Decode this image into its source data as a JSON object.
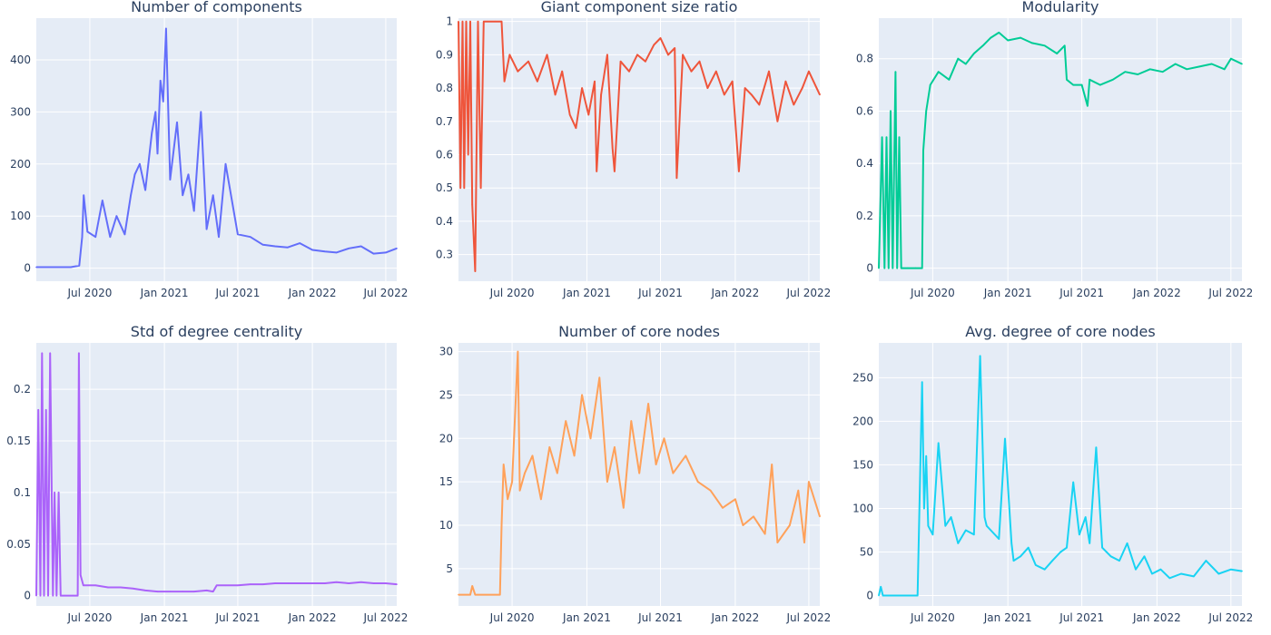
{
  "chart_data": [
    {
      "type": "line",
      "title": "Number of components",
      "color": "#636efa",
      "x_range": [
        "2020-02-20",
        "2022-07-28"
      ],
      "x_ticks": [
        "2020-07-01",
        "2021-01-01",
        "2021-07-01",
        "2022-01-01",
        "2022-07-01"
      ],
      "x_tick_labels": [
        "Jul 2020",
        "Jan 2021",
        "Jul 2021",
        "Jan 2022",
        "Jul 2022"
      ],
      "y_range": [
        -25,
        480
      ],
      "y_ticks": [
        0,
        100,
        200,
        300,
        400
      ],
      "y_tick_labels": [
        "0",
        "100",
        "200",
        "300",
        "400"
      ],
      "series": [
        {
          "x": [
            "2020-02-20",
            "2020-05-15",
            "2020-06-05",
            "2020-06-12",
            "2020-06-16",
            "2020-06-25",
            "2020-07-15",
            "2020-08-01",
            "2020-08-20",
            "2020-09-05",
            "2020-09-25",
            "2020-10-10",
            "2020-10-20",
            "2020-11-01",
            "2020-11-15",
            "2020-12-01",
            "2020-12-10",
            "2020-12-15",
            "2020-12-22",
            "2020-12-29",
            "2021-01-05",
            "2021-01-15",
            "2021-02-01",
            "2021-02-15",
            "2021-03-01",
            "2021-03-15",
            "2021-04-01",
            "2021-04-15",
            "2021-05-01",
            "2021-05-15",
            "2021-06-01",
            "2021-07-01",
            "2021-08-01",
            "2021-09-01",
            "2021-10-01",
            "2021-11-01",
            "2021-12-01",
            "2022-01-01",
            "2022-02-01",
            "2022-03-01",
            "2022-04-01",
            "2022-05-01",
            "2022-06-01",
            "2022-07-01",
            "2022-07-28"
          ],
          "y": [
            2,
            2,
            5,
            60,
            140,
            70,
            60,
            130,
            60,
            100,
            65,
            140,
            180,
            200,
            150,
            260,
            300,
            220,
            360,
            320,
            460,
            170,
            280,
            140,
            180,
            110,
            300,
            75,
            140,
            60,
            200,
            65,
            60,
            45,
            42,
            40,
            48,
            35,
            32,
            30,
            38,
            42,
            28,
            30,
            38
          ]
        }
      ]
    },
    {
      "type": "line",
      "title": "Giant component size ratio",
      "color": "#ef553b",
      "x_range": [
        "2020-02-20",
        "2022-07-28"
      ],
      "x_ticks": [
        "2020-07-01",
        "2021-01-01",
        "2021-07-01",
        "2022-01-01",
        "2022-07-01"
      ],
      "x_tick_labels": [
        "Jul 2020",
        "Jan 2021",
        "Jul 2021",
        "Jan 2022",
        "Jul 2022"
      ],
      "y_range": [
        0.22,
        1.01
      ],
      "y_ticks": [
        0.3,
        0.4,
        0.5,
        0.6,
        0.7,
        0.8,
        0.9,
        1
      ],
      "y_tick_labels": [
        "0.3",
        "0.4",
        "0.5",
        "0.6",
        "0.7",
        "0.8",
        "0.9",
        "1"
      ],
      "series": [
        {
          "x": [
            "2020-02-20",
            "2020-02-25",
            "2020-03-01",
            "2020-03-05",
            "2020-03-10",
            "2020-03-15",
            "2020-03-20",
            "2020-03-25",
            "2020-04-01",
            "2020-04-08",
            "2020-04-15",
            "2020-04-22",
            "2020-05-01",
            "2020-05-20",
            "2020-06-05",
            "2020-06-12",
            "2020-06-25",
            "2020-07-15",
            "2020-08-10",
            "2020-09-01",
            "2020-09-25",
            "2020-10-15",
            "2020-11-01",
            "2020-11-20",
            "2020-12-05",
            "2020-12-20",
            "2021-01-05",
            "2021-01-20",
            "2021-01-25",
            "2021-02-05",
            "2021-02-20",
            "2021-03-05",
            "2021-03-10",
            "2021-03-25",
            "2021-04-15",
            "2021-05-05",
            "2021-05-25",
            "2021-06-15",
            "2021-07-01",
            "2021-07-20",
            "2021-08-05",
            "2021-08-10",
            "2021-08-25",
            "2021-09-15",
            "2021-10-05",
            "2021-10-25",
            "2021-11-15",
            "2021-12-05",
            "2021-12-25",
            "2022-01-10",
            "2022-01-25",
            "2022-02-10",
            "2022-03-01",
            "2022-03-25",
            "2022-04-15",
            "2022-05-05",
            "2022-05-25",
            "2022-06-15",
            "2022-07-01",
            "2022-07-28"
          ],
          "y": [
            1,
            0.5,
            1,
            0.5,
            1,
            0.6,
            1,
            0.45,
            0.25,
            1,
            0.5,
            1,
            1,
            1,
            1,
            0.82,
            0.9,
            0.85,
            0.88,
            0.82,
            0.9,
            0.78,
            0.85,
            0.72,
            0.68,
            0.8,
            0.72,
            0.82,
            0.55,
            0.78,
            0.9,
            0.62,
            0.55,
            0.88,
            0.85,
            0.9,
            0.88,
            0.93,
            0.95,
            0.9,
            0.92,
            0.53,
            0.9,
            0.85,
            0.88,
            0.8,
            0.85,
            0.78,
            0.82,
            0.55,
            0.8,
            0.78,
            0.75,
            0.85,
            0.7,
            0.82,
            0.75,
            0.8,
            0.85,
            0.78
          ]
        }
      ]
    },
    {
      "type": "line",
      "title": "Modularity",
      "color": "#00cc96",
      "x_range": [
        "2020-02-20",
        "2022-07-28"
      ],
      "x_ticks": [
        "2020-07-01",
        "2021-01-01",
        "2021-07-01",
        "2022-01-01",
        "2022-07-01"
      ],
      "x_tick_labels": [
        "Jul 2020",
        "Jan 2021",
        "Jul 2021",
        "Jan 2022",
        "Jul 2022"
      ],
      "y_range": [
        -0.05,
        0.955
      ],
      "y_ticks": [
        0,
        0.2,
        0.4,
        0.6,
        0.8
      ],
      "y_tick_labels": [
        "0",
        "0.2",
        "0.4",
        "0.6",
        "0.8"
      ],
      "series": [
        {
          "x": [
            "2020-02-20",
            "2020-02-28",
            "2020-03-05",
            "2020-03-10",
            "2020-03-15",
            "2020-03-20",
            "2020-03-25",
            "2020-04-01",
            "2020-04-05",
            "2020-04-10",
            "2020-04-15",
            "2020-04-20",
            "2020-05-01",
            "2020-05-20",
            "2020-06-05",
            "2020-06-08",
            "2020-06-15",
            "2020-06-25",
            "2020-07-15",
            "2020-08-10",
            "2020-09-01",
            "2020-09-20",
            "2020-10-10",
            "2020-11-01",
            "2020-11-20",
            "2020-12-10",
            "2021-01-01",
            "2021-02-01",
            "2021-03-01",
            "2021-04-01",
            "2021-05-01",
            "2021-05-20",
            "2021-05-25",
            "2021-06-10",
            "2021-07-01",
            "2021-07-15",
            "2021-07-20",
            "2021-08-15",
            "2021-09-15",
            "2021-10-15",
            "2021-11-15",
            "2021-12-15",
            "2022-01-15",
            "2022-02-15",
            "2022-03-15",
            "2022-04-15",
            "2022-05-15",
            "2022-06-15",
            "2022-07-01",
            "2022-07-28"
          ],
          "y": [
            0,
            0.5,
            0,
            0.5,
            0,
            0.6,
            0,
            0.75,
            0,
            0.5,
            0,
            0,
            0,
            0,
            0,
            0.45,
            0.6,
            0.7,
            0.75,
            0.72,
            0.8,
            0.78,
            0.82,
            0.85,
            0.88,
            0.9,
            0.87,
            0.88,
            0.86,
            0.85,
            0.82,
            0.85,
            0.72,
            0.7,
            0.7,
            0.62,
            0.72,
            0.7,
            0.72,
            0.75,
            0.74,
            0.76,
            0.75,
            0.78,
            0.76,
            0.77,
            0.78,
            0.76,
            0.8,
            0.78
          ]
        }
      ]
    },
    {
      "type": "line",
      "title": "Std of degree centrality",
      "color": "#ab63fa",
      "x_range": [
        "2020-02-20",
        "2022-07-28"
      ],
      "x_ticks": [
        "2020-07-01",
        "2021-01-01",
        "2021-07-01",
        "2022-01-01",
        "2022-07-01"
      ],
      "x_tick_labels": [
        "Jul 2020",
        "Jan 2021",
        "Jul 2021",
        "Jan 2022",
        "Jul 2022"
      ],
      "y_range": [
        -0.01,
        0.245
      ],
      "y_ticks": [
        0,
        0.05,
        0.1,
        0.15,
        0.2
      ],
      "y_tick_labels": [
        "0",
        "0.05",
        "0.1",
        "0.15",
        "0.2"
      ],
      "series": [
        {
          "x": [
            "2020-02-20",
            "2020-02-25",
            "2020-03-01",
            "2020-03-05",
            "2020-03-10",
            "2020-03-15",
            "2020-03-20",
            "2020-03-25",
            "2020-04-01",
            "2020-04-05",
            "2020-04-10",
            "2020-04-15",
            "2020-04-20",
            "2020-05-01",
            "2020-05-20",
            "2020-06-01",
            "2020-06-04",
            "2020-06-08",
            "2020-06-15",
            "2020-07-15",
            "2020-08-15",
            "2020-09-15",
            "2020-10-15",
            "2020-11-15",
            "2020-12-15",
            "2021-01-15",
            "2021-02-15",
            "2021-03-15",
            "2021-04-15",
            "2021-05-01",
            "2021-05-10",
            "2021-06-01",
            "2021-07-01",
            "2021-08-01",
            "2021-09-01",
            "2021-10-01",
            "2021-11-01",
            "2021-12-01",
            "2022-01-01",
            "2022-02-01",
            "2022-03-01",
            "2022-04-01",
            "2022-05-01",
            "2022-06-01",
            "2022-07-01",
            "2022-07-28"
          ],
          "y": [
            0,
            0.18,
            0,
            0.235,
            0,
            0.18,
            0,
            0.235,
            0,
            0.1,
            0,
            0.1,
            0,
            0,
            0,
            0,
            0.235,
            0.02,
            0.01,
            0.01,
            0.008,
            0.008,
            0.007,
            0.005,
            0.004,
            0.004,
            0.004,
            0.004,
            0.005,
            0.004,
            0.01,
            0.01,
            0.01,
            0.011,
            0.011,
            0.012,
            0.012,
            0.012,
            0.012,
            0.012,
            0.013,
            0.012,
            0.013,
            0.012,
            0.012,
            0.011
          ]
        }
      ]
    },
    {
      "type": "line",
      "title": "Number of core nodes",
      "color": "#ffa15a",
      "x_range": [
        "2020-02-20",
        "2022-07-28"
      ],
      "x_ticks": [
        "2020-07-01",
        "2021-01-01",
        "2021-07-01",
        "2022-01-01",
        "2022-07-01"
      ],
      "x_tick_labels": [
        "Jul 2020",
        "Jan 2021",
        "Jul 2021",
        "Jan 2022",
        "Jul 2022"
      ],
      "y_range": [
        0.7,
        31
      ],
      "y_ticks": [
        5,
        10,
        15,
        20,
        25,
        30
      ],
      "y_tick_labels": [
        "5",
        "10",
        "15",
        "20",
        "25",
        "30"
      ],
      "series": [
        {
          "x": [
            "2020-02-20",
            "2020-03-20",
            "2020-03-25",
            "2020-04-01",
            "2020-06-01",
            "2020-06-05",
            "2020-06-10",
            "2020-06-20",
            "2020-07-01",
            "2020-07-15",
            "2020-07-20",
            "2020-08-01",
            "2020-08-20",
            "2020-09-10",
            "2020-10-01",
            "2020-10-20",
            "2020-11-10",
            "2020-12-01",
            "2020-12-20",
            "2021-01-10",
            "2021-02-01",
            "2021-02-20",
            "2021-03-10",
            "2021-04-01",
            "2021-04-20",
            "2021-05-10",
            "2021-06-01",
            "2021-06-20",
            "2021-07-10",
            "2021-08-01",
            "2021-09-01",
            "2021-10-01",
            "2021-11-01",
            "2021-12-01",
            "2022-01-01",
            "2022-01-20",
            "2022-02-15",
            "2022-03-15",
            "2022-04-01",
            "2022-04-15",
            "2022-05-15",
            "2022-06-05",
            "2022-06-20",
            "2022-07-01",
            "2022-07-28"
          ],
          "y": [
            2,
            2,
            3,
            2,
            2,
            10,
            17,
            13,
            15,
            30,
            14,
            16,
            18,
            13,
            19,
            16,
            22,
            18,
            25,
            20,
            27,
            15,
            19,
            12,
            22,
            16,
            24,
            17,
            20,
            16,
            18,
            15,
            14,
            12,
            13,
            10,
            11,
            9,
            17,
            8,
            10,
            14,
            8,
            15,
            11
          ]
        }
      ]
    },
    {
      "type": "line",
      "title": "Avg. degree of core nodes",
      "color": "#19d3f3",
      "x_range": [
        "2020-02-20",
        "2022-07-28"
      ],
      "x_ticks": [
        "2020-07-01",
        "2021-01-01",
        "2021-07-01",
        "2022-01-01",
        "2022-07-01"
      ],
      "x_tick_labels": [
        "Jul 2020",
        "Jan 2021",
        "Jul 2021",
        "Jan 2022",
        "Jul 2022"
      ],
      "y_range": [
        -12,
        290
      ],
      "y_ticks": [
        0,
        50,
        100,
        150,
        200,
        250
      ],
      "y_tick_labels": [
        "0",
        "50",
        "100",
        "150",
        "200",
        "250"
      ],
      "series": [
        {
          "x": [
            "2020-02-20",
            "2020-02-25",
            "2020-03-01",
            "2020-05-25",
            "2020-06-05",
            "2020-06-10",
            "2020-06-15",
            "2020-06-20",
            "2020-07-01",
            "2020-07-15",
            "2020-08-01",
            "2020-08-15",
            "2020-09-01",
            "2020-09-20",
            "2020-10-10",
            "2020-10-25",
            "2020-11-05",
            "2020-11-10",
            "2020-11-20",
            "2020-12-10",
            "2020-12-25",
            "2021-01-10",
            "2021-01-15",
            "2021-02-01",
            "2021-02-20",
            "2021-03-10",
            "2021-04-01",
            "2021-04-20",
            "2021-05-10",
            "2021-05-25",
            "2021-06-10",
            "2021-06-25",
            "2021-07-10",
            "2021-07-20",
            "2021-08-05",
            "2021-08-20",
            "2021-09-10",
            "2021-10-01",
            "2021-10-20",
            "2021-11-10",
            "2021-12-01",
            "2021-12-20",
            "2022-01-10",
            "2022-02-01",
            "2022-03-01",
            "2022-04-01",
            "2022-05-01",
            "2022-06-01",
            "2022-07-01",
            "2022-07-28"
          ],
          "y": [
            0,
            10,
            0,
            0,
            245,
            100,
            160,
            80,
            70,
            175,
            80,
            90,
            60,
            75,
            70,
            275,
            90,
            80,
            75,
            65,
            180,
            60,
            40,
            45,
            55,
            35,
            30,
            40,
            50,
            55,
            130,
            70,
            90,
            60,
            170,
            55,
            45,
            40,
            60,
            30,
            45,
            25,
            30,
            20,
            25,
            22,
            40,
            25,
            30,
            28
          ]
        }
      ]
    }
  ]
}
